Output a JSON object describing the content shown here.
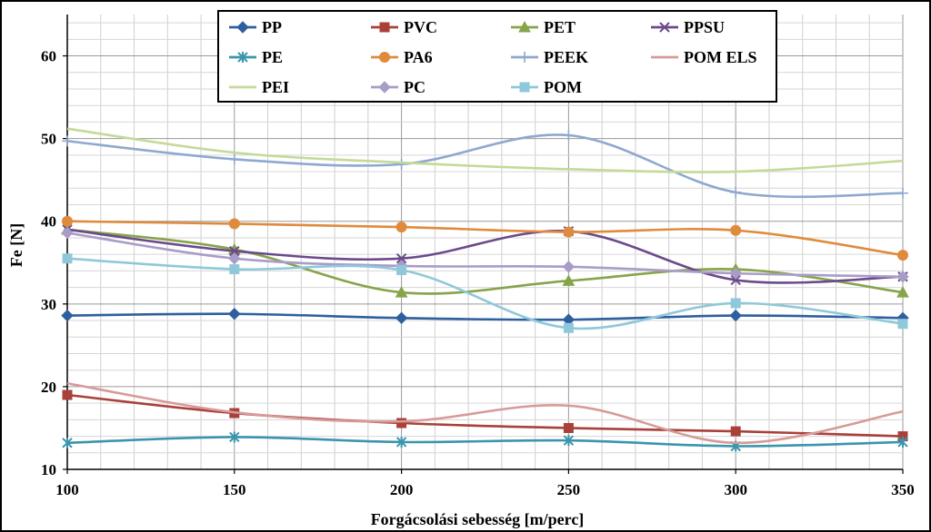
{
  "chart_data": {
    "type": "line",
    "title": "",
    "xlabel": "Forgácsolási sebesség [m/perc]",
    "ylabel": "Fe [N]",
    "xlim": [
      100,
      350
    ],
    "ylim": [
      10,
      65
    ],
    "x_ticks": [
      100,
      150,
      200,
      250,
      300,
      350
    ],
    "y_ticks": [
      10,
      20,
      30,
      40,
      50,
      60
    ],
    "grid": true,
    "legend_position": "top-center",
    "x": [
      100,
      150,
      200,
      250,
      300,
      350
    ],
    "series": [
      {
        "name": "PP",
        "color": "#2e5f9e",
        "marker": "diamond",
        "values": [
          28.6,
          28.8,
          28.3,
          28.1,
          28.6,
          28.3
        ]
      },
      {
        "name": "PVC",
        "color": "#a9403a",
        "marker": "square",
        "values": [
          19.0,
          16.8,
          15.6,
          15.0,
          14.6,
          14.0
        ]
      },
      {
        "name": "PET",
        "color": "#86a44a",
        "marker": "triangle",
        "values": [
          39.0,
          36.6,
          31.4,
          32.8,
          34.2,
          31.4
        ]
      },
      {
        "name": "PPSU",
        "color": "#6b4a8a",
        "marker": "x",
        "values": [
          39.0,
          36.4,
          35.5,
          38.8,
          32.9,
          33.3
        ]
      },
      {
        "name": "PE",
        "color": "#3a95ad",
        "marker": "star",
        "values": [
          13.2,
          13.9,
          13.3,
          13.5,
          12.8,
          13.3
        ]
      },
      {
        "name": "PA6",
        "color": "#e08a3c",
        "marker": "circle",
        "values": [
          40.0,
          39.7,
          39.3,
          38.7,
          38.9,
          35.9
        ]
      },
      {
        "name": "PEEK",
        "color": "#8fa8d0",
        "marker": "plus",
        "values": [
          49.7,
          47.5,
          46.9,
          50.4,
          43.5,
          43.4
        ]
      },
      {
        "name": "POM ELS",
        "color": "#d89a98",
        "marker": "none",
        "values": [
          20.4,
          16.9,
          15.8,
          17.7,
          13.2,
          17.0
        ]
      },
      {
        "name": "PEI",
        "color": "#c4d99a",
        "marker": "none",
        "values": [
          51.2,
          48.3,
          47.1,
          46.3,
          46.0,
          47.3
        ]
      },
      {
        "name": "PC",
        "color": "#a99cc8",
        "marker": "diamond",
        "values": [
          38.6,
          35.5,
          34.6,
          34.5,
          33.7,
          33.3
        ]
      },
      {
        "name": "POM",
        "color": "#8fc8da",
        "marker": "square",
        "values": [
          35.5,
          34.2,
          34.1,
          27.1,
          30.1,
          27.6
        ]
      }
    ]
  }
}
